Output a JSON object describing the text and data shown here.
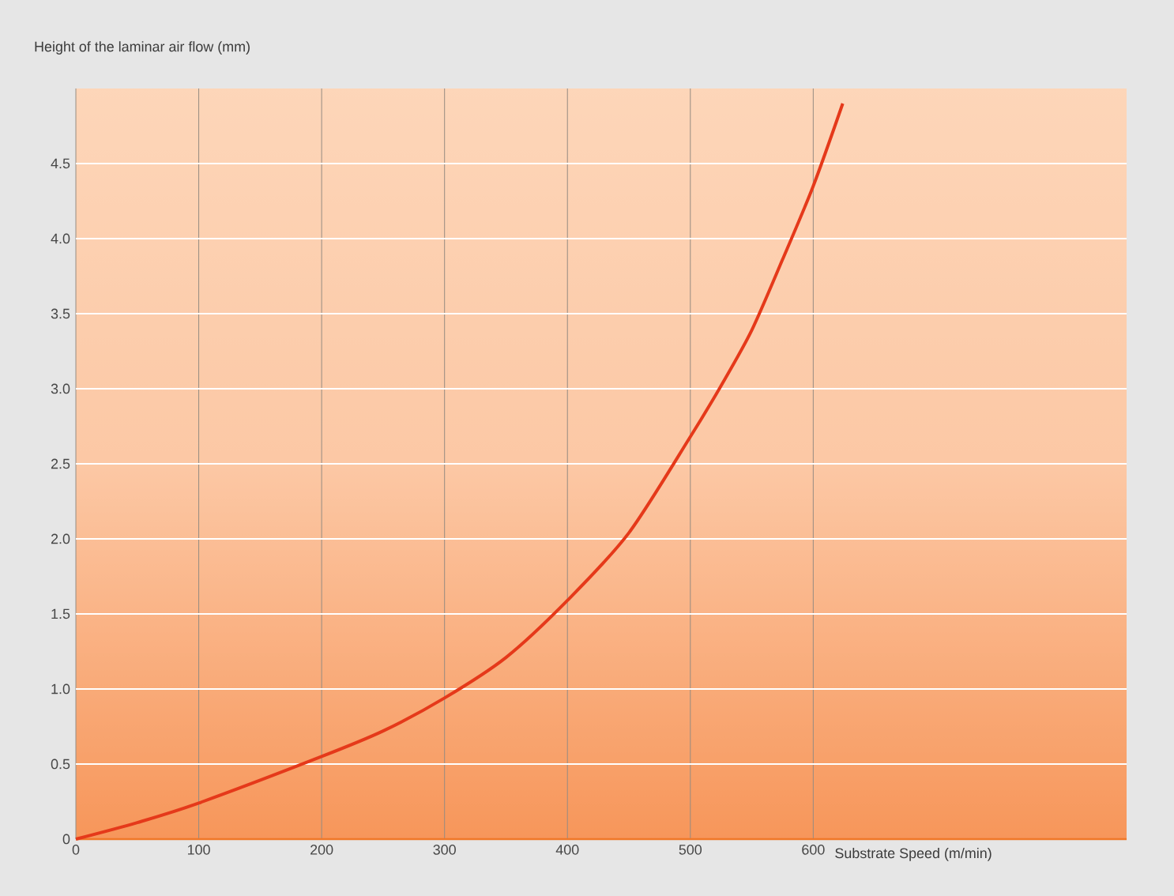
{
  "chart_data": {
    "type": "line",
    "xlabel": "Substrate Speed (m/min)",
    "ylabel": "Height of the laminar air flow (mm)",
    "xlim": [
      0,
      855
    ],
    "ylim": [
      0,
      5
    ],
    "xticks": [
      0,
      100,
      200,
      300,
      400,
      500,
      600
    ],
    "yticks": [
      0,
      0.5,
      {
        "value": 1,
        "label": "1.0"
      },
      1.5,
      {
        "value": 2,
        "label": "2.0"
      },
      2.5,
      {
        "value": 3,
        "label": "3.0"
      },
      3.5,
      {
        "value": 4,
        "label": "4.0"
      },
      4.5
    ],
    "grid": true,
    "marker": "none",
    "line_style": "solid",
    "series": [
      {
        "color": "#e5391a",
        "x": [
          0,
          50,
          100,
          200,
          250,
          300,
          350,
          400,
          450,
          500,
          525,
          550,
          575,
          600,
          624
        ],
        "values": [
          0,
          0.11,
          0.24,
          0.55,
          0.72,
          0.94,
          1.21,
          1.59,
          2.04,
          2.68,
          3.02,
          3.39,
          3.86,
          4.35,
          4.9
        ]
      }
    ]
  }
}
